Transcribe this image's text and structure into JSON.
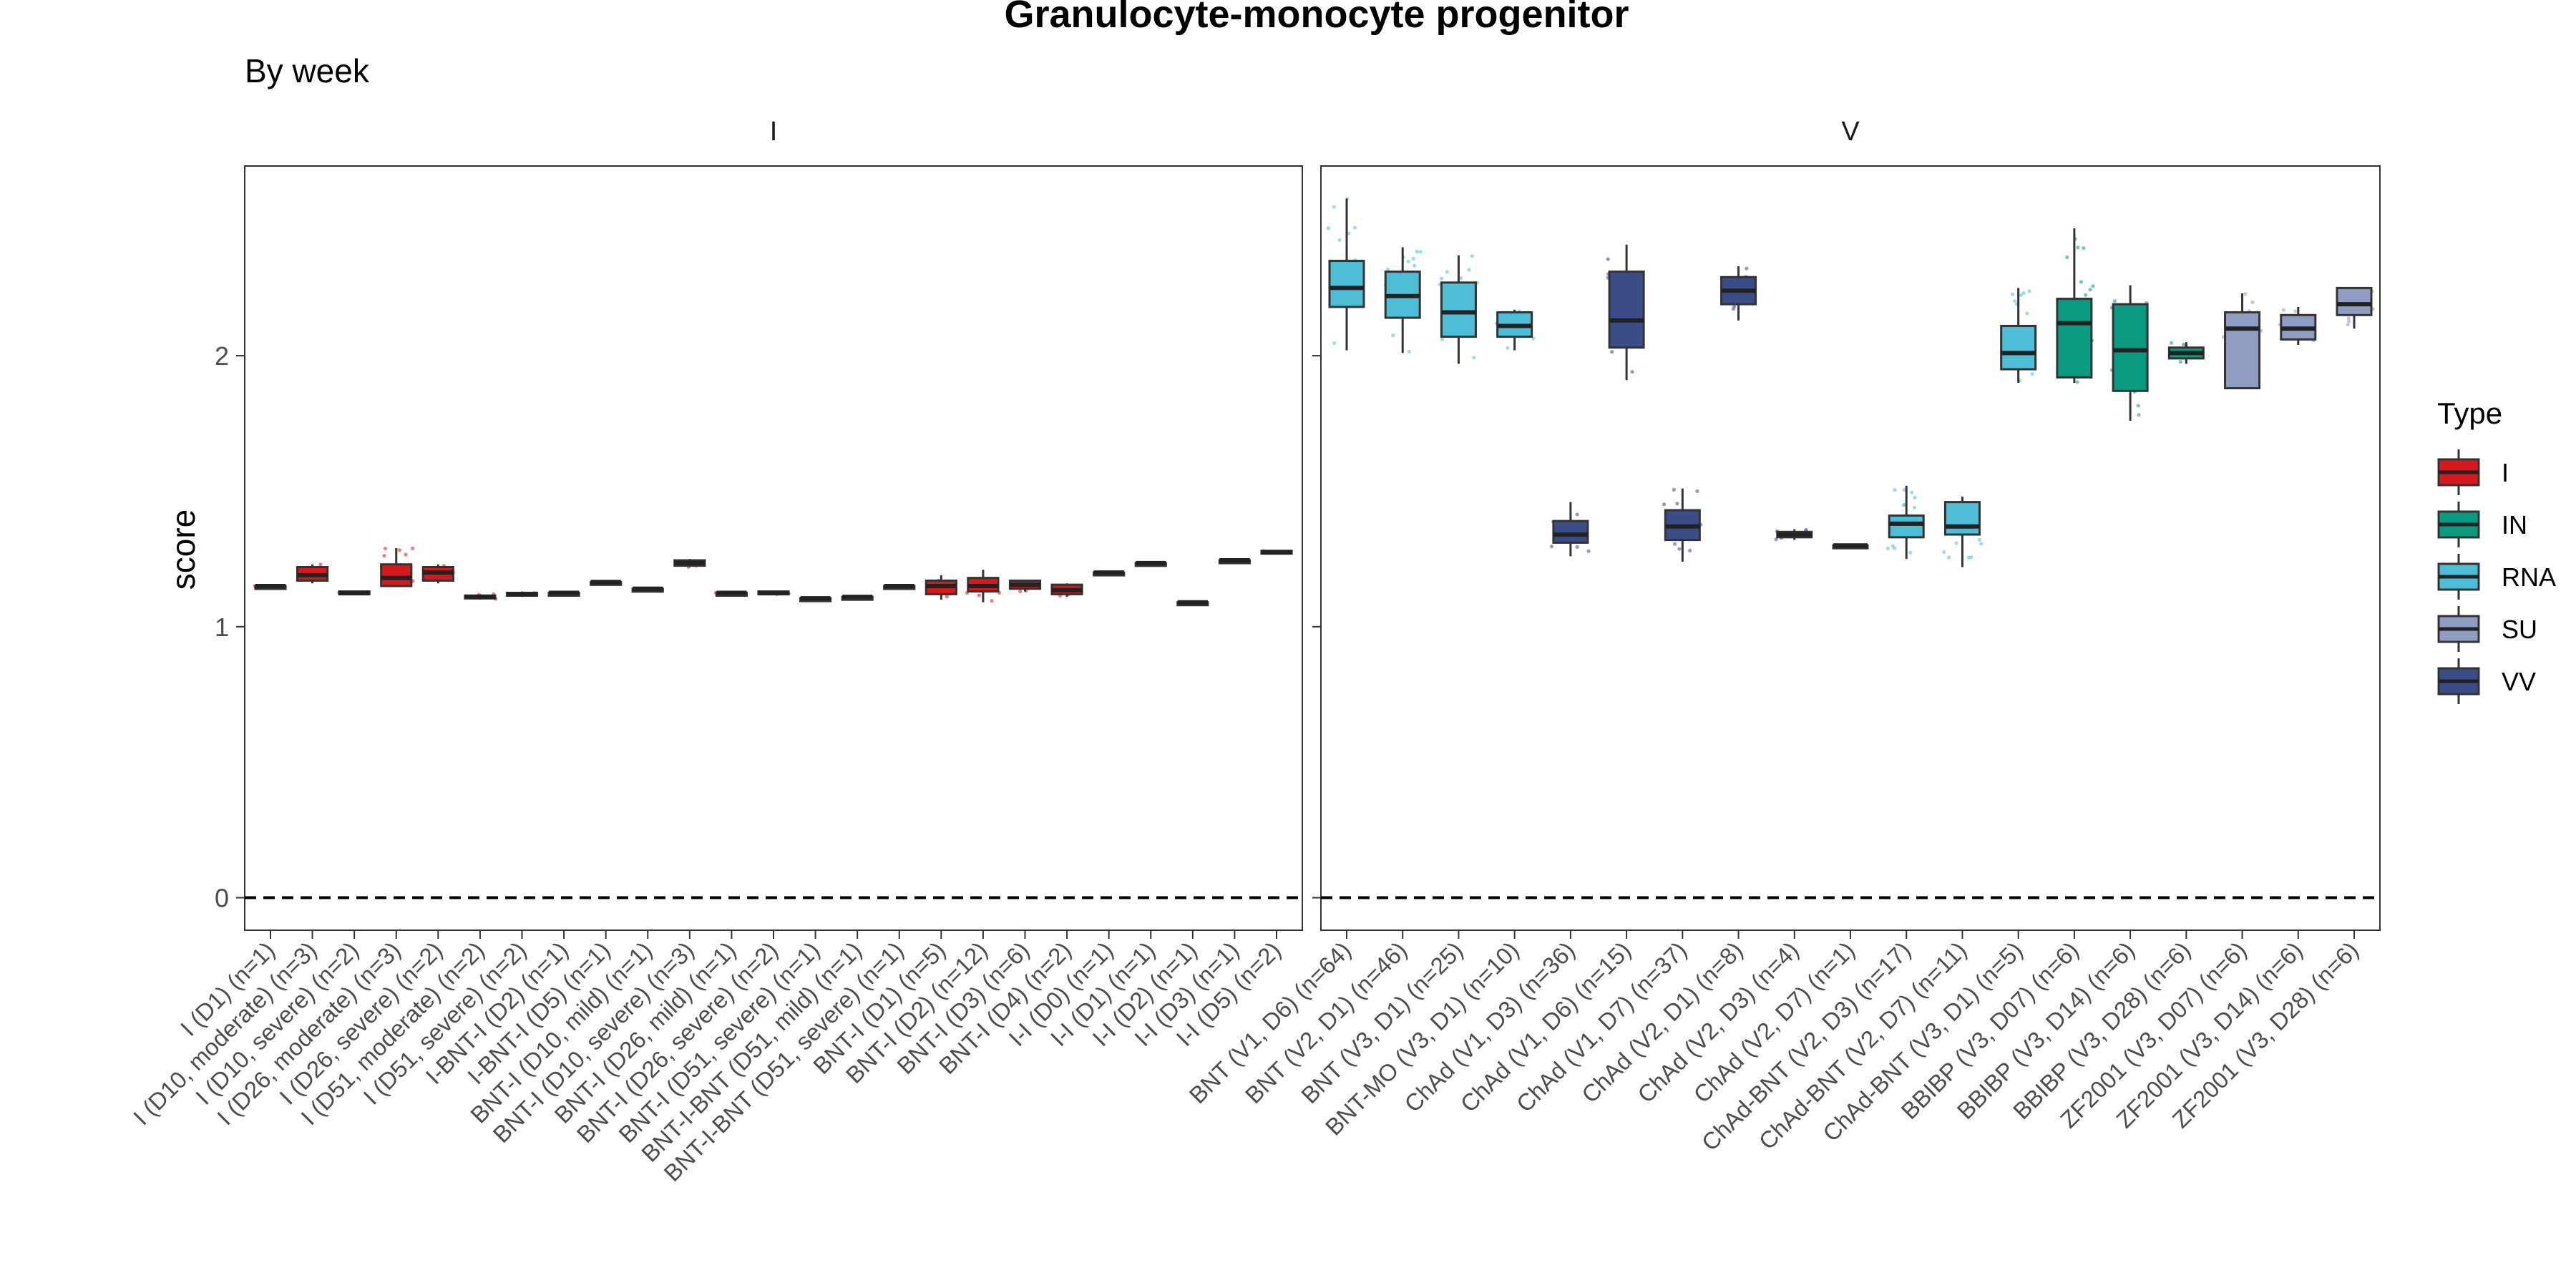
{
  "chart_data": {
    "type": "box",
    "title": "Granulocyte-monocyte progenitor",
    "subtitle": "By week",
    "ylabel": "score",
    "xlabel": "",
    "ylim": [
      -0.12,
      2.7
    ],
    "yticks": [
      0,
      1,
      2
    ],
    "reference_line": 0,
    "legend": {
      "title": "Type",
      "position": "right",
      "items": [
        {
          "name": "I",
          "color": "#d7191c"
        },
        {
          "name": "IN",
          "color": "#099a80"
        },
        {
          "name": "RNA",
          "color": "#4ebdd6"
        },
        {
          "name": "SU",
          "color": "#8f9dc2"
        },
        {
          "name": "VV",
          "color": "#3b4d86"
        }
      ]
    },
    "panels": [
      {
        "name": "I",
        "groups": [
          {
            "label": "I (D1) (n=1)",
            "type": "I",
            "q1": 1.15,
            "median": 1.15,
            "q3": 1.15,
            "min": 1.15,
            "max": 1.15
          },
          {
            "label": "I (D10, moderate) (n=3)",
            "type": "I",
            "q1": 1.17,
            "median": 1.19,
            "q3": 1.22,
            "min": 1.16,
            "max": 1.23
          },
          {
            "label": "I (D10, severe) (n=2)",
            "type": "I",
            "q1": 1.12,
            "median": 1.125,
            "q3": 1.13,
            "min": 1.12,
            "max": 1.13
          },
          {
            "label": "I (D26, moderate) (n=3)",
            "type": "I",
            "q1": 1.15,
            "median": 1.18,
            "q3": 1.23,
            "min": 1.15,
            "max": 1.29
          },
          {
            "label": "I (D26, severe) (n=2)",
            "type": "I",
            "q1": 1.17,
            "median": 1.2,
            "q3": 1.22,
            "min": 1.16,
            "max": 1.23
          },
          {
            "label": "I (D51, moderate) (n=2)",
            "type": "I",
            "q1": 1.105,
            "median": 1.11,
            "q3": 1.115,
            "min": 1.1,
            "max": 1.12
          },
          {
            "label": "I (D51, severe) (n=2)",
            "type": "I",
            "q1": 1.115,
            "median": 1.12,
            "q3": 1.125,
            "min": 1.11,
            "max": 1.13
          },
          {
            "label": "I-BNT-I (D2) (n=1)",
            "type": "I",
            "q1": 1.125,
            "median": 1.125,
            "q3": 1.125,
            "min": 1.125,
            "max": 1.125
          },
          {
            "label": "I-BNT-I (D5) (n=1)",
            "type": "I",
            "q1": 1.165,
            "median": 1.165,
            "q3": 1.165,
            "min": 1.165,
            "max": 1.165
          },
          {
            "label": "BNT-I (D10, mild) (n=1)",
            "type": "I",
            "q1": 1.14,
            "median": 1.14,
            "q3": 1.14,
            "min": 1.14,
            "max": 1.14
          },
          {
            "label": "BNT-I (D10, severe) (n=3)",
            "type": "I",
            "q1": 1.225,
            "median": 1.235,
            "q3": 1.245,
            "min": 1.22,
            "max": 1.25
          },
          {
            "label": "BNT-I (D26, mild) (n=1)",
            "type": "I",
            "q1": 1.125,
            "median": 1.125,
            "q3": 1.125,
            "min": 1.125,
            "max": 1.125
          },
          {
            "label": "BNT-I (D26, severe) (n=2)",
            "type": "I",
            "q1": 1.12,
            "median": 1.125,
            "q3": 1.13,
            "min": 1.12,
            "max": 1.13
          },
          {
            "label": "BNT-I (D51, severe) (n=1)",
            "type": "I",
            "q1": 1.105,
            "median": 1.105,
            "q3": 1.105,
            "min": 1.105,
            "max": 1.105
          },
          {
            "label": "BNT-I-BNT (D51, mild) (n=1)",
            "type": "I",
            "q1": 1.11,
            "median": 1.11,
            "q3": 1.11,
            "min": 1.11,
            "max": 1.11
          },
          {
            "label": "BNT-I-BNT (D51, severe) (n=1)",
            "type": "I",
            "q1": 1.15,
            "median": 1.15,
            "q3": 1.15,
            "min": 1.15,
            "max": 1.15
          },
          {
            "label": "BNT-I (D1) (n=5)",
            "type": "I",
            "q1": 1.12,
            "median": 1.15,
            "q3": 1.17,
            "min": 1.1,
            "max": 1.19
          },
          {
            "label": "BNT-I (D2) (n=12)",
            "type": "I",
            "q1": 1.13,
            "median": 1.15,
            "q3": 1.18,
            "min": 1.09,
            "max": 1.21
          },
          {
            "label": "BNT-I (D3) (n=6)",
            "type": "I",
            "q1": 1.14,
            "median": 1.155,
            "q3": 1.17,
            "min": 1.13,
            "max": 1.17
          },
          {
            "label": "BNT-I (D4) (n=2)",
            "type": "I",
            "q1": 1.12,
            "median": 1.135,
            "q3": 1.155,
            "min": 1.11,
            "max": 1.16
          },
          {
            "label": "I-I (D0) (n=1)",
            "type": "I",
            "q1": 1.2,
            "median": 1.2,
            "q3": 1.2,
            "min": 1.2,
            "max": 1.2
          },
          {
            "label": "I-I (D1) (n=1)",
            "type": "I",
            "q1": 1.235,
            "median": 1.235,
            "q3": 1.235,
            "min": 1.235,
            "max": 1.235
          },
          {
            "label": "I-I (D2) (n=1)",
            "type": "I",
            "q1": 1.09,
            "median": 1.09,
            "q3": 1.09,
            "min": 1.09,
            "max": 1.09
          },
          {
            "label": "I-I (D3) (n=1)",
            "type": "I",
            "q1": 1.245,
            "median": 1.245,
            "q3": 1.245,
            "min": 1.245,
            "max": 1.245
          },
          {
            "label": "I-I (D5) (n=2)",
            "type": "I",
            "q1": 1.27,
            "median": 1.275,
            "q3": 1.28,
            "min": 1.27,
            "max": 1.28
          }
        ]
      },
      {
        "name": "V",
        "groups": [
          {
            "label": "BNT (V1, D6) (n=64)",
            "type": "RNA",
            "q1": 2.18,
            "median": 2.25,
            "q3": 2.35,
            "min": 2.02,
            "max": 2.58
          },
          {
            "label": "BNT (V2, D1) (n=46)",
            "type": "RNA",
            "q1": 2.14,
            "median": 2.22,
            "q3": 2.31,
            "min": 2.01,
            "max": 2.4
          },
          {
            "label": "BNT (V3, D1) (n=25)",
            "type": "RNA",
            "q1": 2.07,
            "median": 2.16,
            "q3": 2.27,
            "min": 1.97,
            "max": 2.37
          },
          {
            "label": "BNT-MO (V3, D1) (n=10)",
            "type": "RNA",
            "q1": 2.07,
            "median": 2.11,
            "q3": 2.16,
            "min": 2.02,
            "max": 2.17
          },
          {
            "label": "ChAd (V1, D3) (n=36)",
            "type": "VV",
            "q1": 1.31,
            "median": 1.34,
            "q3": 1.39,
            "min": 1.26,
            "max": 1.46
          },
          {
            "label": "ChAd (V1, D6) (n=15)",
            "type": "VV",
            "q1": 2.03,
            "median": 2.13,
            "q3": 2.31,
            "min": 1.91,
            "max": 2.41
          },
          {
            "label": "ChAd (V1, D7) (n=37)",
            "type": "VV",
            "q1": 1.32,
            "median": 1.37,
            "q3": 1.43,
            "min": 1.24,
            "max": 1.51
          },
          {
            "label": "ChAd (V2, D1) (n=8)",
            "type": "VV",
            "q1": 2.19,
            "median": 2.24,
            "q3": 2.29,
            "min": 2.13,
            "max": 2.33
          },
          {
            "label": "ChAd (V2, D3) (n=4)",
            "type": "VV",
            "q1": 1.33,
            "median": 1.34,
            "q3": 1.35,
            "min": 1.32,
            "max": 1.36
          },
          {
            "label": "ChAd (V2, D7) (n=1)",
            "type": "VV",
            "q1": 1.3,
            "median": 1.3,
            "q3": 1.3,
            "min": 1.3,
            "max": 1.3
          },
          {
            "label": "ChAd-BNT (V2, D3) (n=17)",
            "type": "RNA",
            "q1": 1.33,
            "median": 1.38,
            "q3": 1.41,
            "min": 1.25,
            "max": 1.52
          },
          {
            "label": "ChAd-BNT (V2, D7) (n=11)",
            "type": "RNA",
            "q1": 1.34,
            "median": 1.37,
            "q3": 1.46,
            "min": 1.22,
            "max": 1.48
          },
          {
            "label": "ChAd-BNT (V3, D1) (n=5)",
            "type": "RNA",
            "q1": 1.95,
            "median": 2.01,
            "q3": 2.11,
            "min": 1.9,
            "max": 2.25
          },
          {
            "label": "BBIBP (V3, D07) (n=6)",
            "type": "IN",
            "q1": 1.92,
            "median": 2.12,
            "q3": 2.21,
            "min": 1.9,
            "max": 2.47
          },
          {
            "label": "BBIBP (V3, D14) (n=6)",
            "type": "IN",
            "q1": 1.87,
            "median": 2.02,
            "q3": 2.19,
            "min": 1.76,
            "max": 2.26
          },
          {
            "label": "BBIBP (V3, D28) (n=6)",
            "type": "IN",
            "q1": 1.99,
            "median": 2.01,
            "q3": 2.03,
            "min": 1.97,
            "max": 2.05
          },
          {
            "label": "ZF2001 (V3, D07) (n=6)",
            "type": "SU",
            "q1": 1.88,
            "median": 2.1,
            "q3": 2.16,
            "min": 1.88,
            "max": 2.23
          },
          {
            "label": "ZF2001 (V3, D14) (n=6)",
            "type": "SU",
            "q1": 2.06,
            "median": 2.1,
            "q3": 2.15,
            "min": 2.04,
            "max": 2.18
          },
          {
            "label": "ZF2001 (V3, D28) (n=6)",
            "type": "SU",
            "q1": 2.15,
            "median": 2.19,
            "q3": 2.25,
            "min": 2.1,
            "max": 2.25
          }
        ]
      }
    ]
  }
}
